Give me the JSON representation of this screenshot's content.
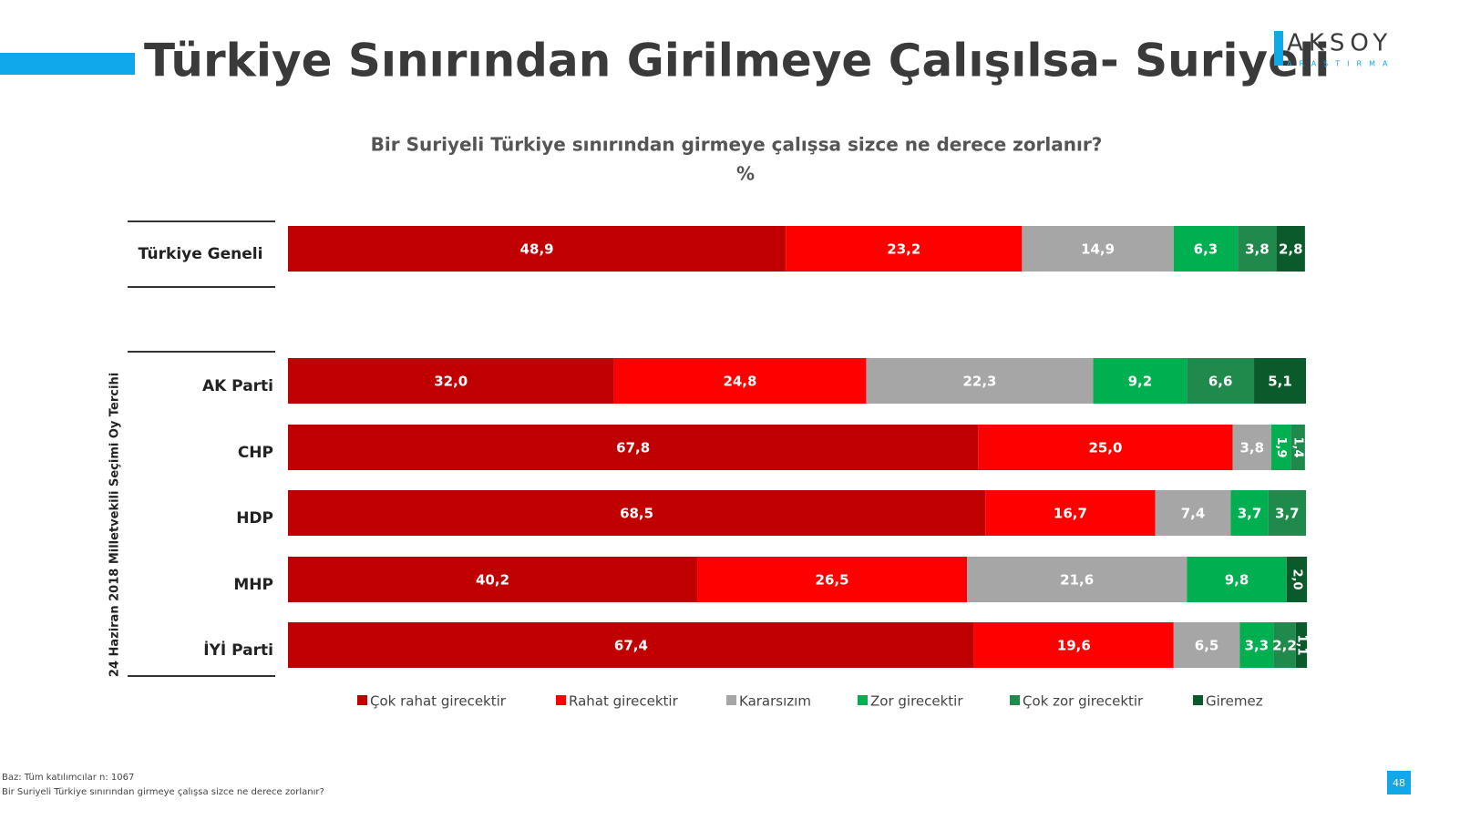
{
  "chart_data": {
    "type": "bar",
    "orientation": "horizontal",
    "stacked": true,
    "title": "Türkiye Sınırından Girilmeye Çalışılsa- Suriyeli",
    "subtitle": "Bir Suriyeli Türkiye sınırından girmeye çalışsa sizce ne derece zorlanır?",
    "unit": "%",
    "group_label": "24 Haziran 2018 Milletvekili Seçimi Oy Tercihi",
    "logo": "AKSOY",
    "logo_sub": "ARAŞTIRMA",
    "footnotes": [
      "Baz: Tüm katılımcılar n: 1067",
      "Bir Suriyeli Türkiye sınırından girmeye çalışsa sizce ne derece zorlanır?"
    ],
    "page_number": "48",
    "categories": [
      "Türkiye Geneli",
      "AK Parti",
      "CHP",
      "HDP",
      "MHP",
      "İYİ Parti"
    ],
    "xlim": [
      0,
      100
    ],
    "legend": "bottom",
    "series": [
      {
        "name": "Çok rahat girecektir",
        "color": "#c00000",
        "values": [
          48.9,
          32.0,
          67.8,
          68.5,
          40.2,
          67.4
        ],
        "value_labels": [
          "48,9",
          "32,0",
          "67,8",
          "68,5",
          "40,2",
          "67,4"
        ]
      },
      {
        "name": "Rahat girecektir",
        "color": "#ff0000",
        "values": [
          23.2,
          24.8,
          25.0,
          16.7,
          26.5,
          19.6
        ],
        "value_labels": [
          "23,2",
          "24,8",
          "25,0",
          "16,7",
          "26,5",
          "19,6"
        ]
      },
      {
        "name": "Kararsızım",
        "color": "#a6a6a6",
        "values": [
          14.9,
          22.3,
          3.8,
          7.4,
          21.6,
          6.5
        ],
        "value_labels": [
          "14,9",
          "22,3",
          "3,8",
          "7,4",
          "21,6",
          "6,5"
        ]
      },
      {
        "name": "Zor girecektir",
        "color": "#00b050",
        "values": [
          6.3,
          9.2,
          1.9,
          3.7,
          9.8,
          3.3
        ],
        "value_labels": [
          "6,3",
          "9,2",
          "1,9",
          "3,7",
          "9,8",
          "3,3"
        ]
      },
      {
        "name": "Çok zor girecektir",
        "color": "#1f8a4c",
        "values": [
          3.8,
          6.6,
          1.4,
          3.7,
          null,
          2.2
        ],
        "value_labels": [
          "3,8",
          "6,6",
          "1,4",
          "3,7",
          null,
          "2,2"
        ]
      },
      {
        "name": "Giremez",
        "color": "#0b5a2c",
        "values": [
          2.8,
          5.1,
          null,
          null,
          2.0,
          1.1
        ],
        "value_labels": [
          "2,8",
          "5,1",
          null,
          null,
          "2,0",
          "1,1"
        ]
      }
    ]
  }
}
